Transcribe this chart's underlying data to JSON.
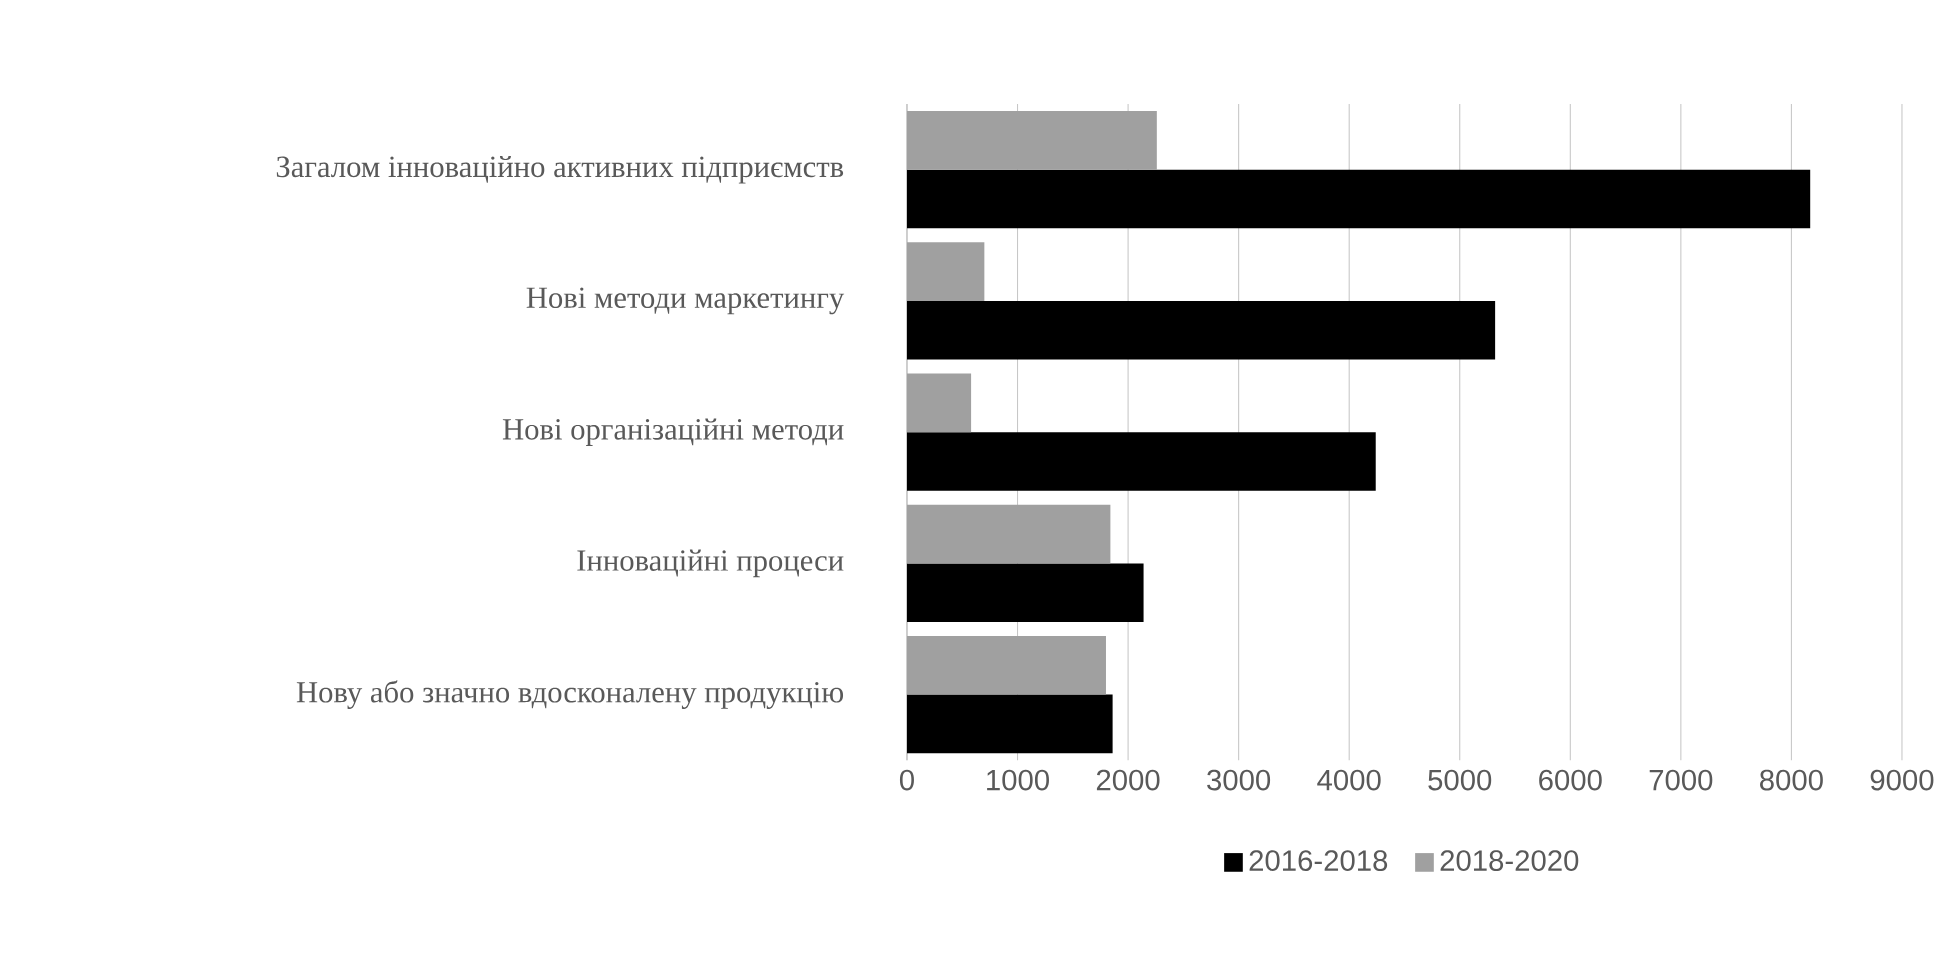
{
  "chart_data": {
    "type": "bar",
    "orientation": "horizontal",
    "categories": [
      "Загалом інноваційно активних підприємств",
      "Нові методи маркетингу",
      "Нові організаційні методи",
      "Інноваційні процеси",
      "Нову або значно вдосконалену продукцію"
    ],
    "series": [
      {
        "name": "2016-2018",
        "color": "#000000",
        "values": [
          8170,
          5320,
          4240,
          2140,
          1860
        ]
      },
      {
        "name": "2018-2020",
        "color": "#a0a0a0",
        "values": [
          2260,
          700,
          580,
          1840,
          1800
        ]
      }
    ],
    "xlim": [
      0,
      9000
    ],
    "xticks": [
      0,
      1000,
      2000,
      3000,
      4000,
      5000,
      6000,
      7000,
      8000,
      9000
    ],
    "grid": "x",
    "legend": "bottom"
  }
}
